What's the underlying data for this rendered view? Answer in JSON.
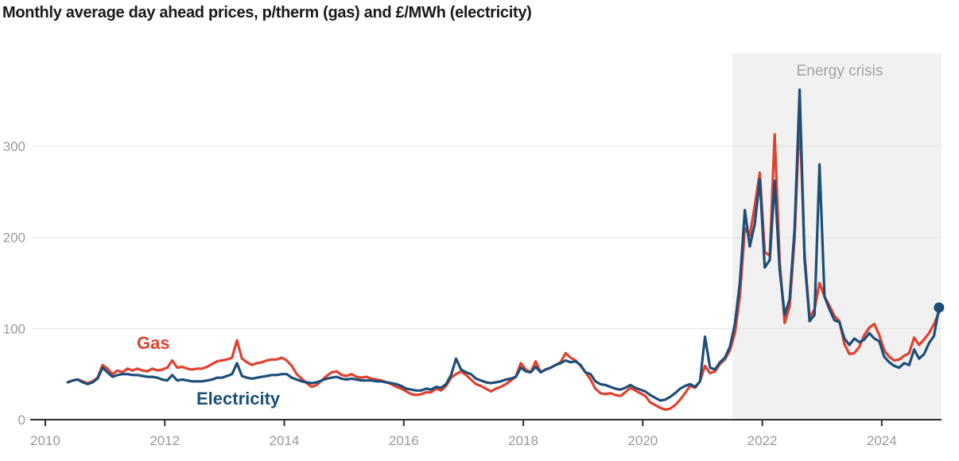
{
  "title": "Monthly average day ahead prices, p/therm (gas) and £/MWh (electricity)",
  "chart_data": {
    "type": "line",
    "title": "Monthly average day ahead prices, p/therm (gas) and £/MWh (electricity)",
    "x_frequency": "monthly",
    "x_start": "2010-05",
    "xlim": [
      2009.774,
      2025.0
    ],
    "ylim": [
      0,
      402
    ],
    "grid": "horizontal",
    "legend": "inline-labels",
    "x_ticks": [
      "2010",
      "2012",
      "2014",
      "2016",
      "2018",
      "2020",
      "2022",
      "2024"
    ],
    "y_ticks": [
      "0",
      "100",
      "200",
      "300"
    ],
    "series_labels": {
      "gas": "Gas",
      "electricity": "Electricity"
    },
    "annotation": {
      "label": "Energy crisis",
      "start_year": 2021.5,
      "end_year": 2025.0
    },
    "colors": {
      "gas": "#e0412f",
      "electricity": "#1c4e78",
      "grid": "#e4e4e4",
      "axis": "#2e2e2e",
      "tick_text": "#9a9a9a",
      "annotation_text": "#a3a3a3",
      "region_fill": "#f1f1f1",
      "title_text": "#1a1a1a"
    },
    "series": [
      {
        "name": "Gas",
        "unit": "p/therm",
        "color": "#e0412f",
        "end_marker": false,
        "values": [
          41,
          43,
          44,
          42,
          40,
          42,
          46,
          60,
          56,
          50,
          54,
          52,
          56,
          54,
          56,
          54,
          53,
          56,
          54,
          55,
          57,
          65,
          57,
          58,
          56,
          55,
          56,
          56,
          58,
          61,
          64,
          65,
          66,
          68,
          87,
          67,
          63,
          60,
          62,
          63,
          65,
          66,
          66,
          68,
          65,
          59,
          50,
          45,
          40,
          36,
          38,
          43,
          48,
          52,
          53,
          49,
          48,
          50,
          47,
          46,
          47,
          45,
          44,
          43,
          41,
          39,
          36,
          34,
          31,
          28,
          27,
          28,
          30,
          30,
          34,
          32,
          37,
          46,
          50,
          53,
          49,
          44,
          39,
          37,
          34,
          31,
          34,
          36,
          39,
          43,
          47,
          62,
          55,
          52,
          64,
          52,
          55,
          57,
          60,
          63,
          73,
          68,
          65,
          59,
          52,
          44,
          34,
          29,
          28,
          29,
          27,
          26,
          30,
          35,
          32,
          29,
          26,
          19,
          16,
          13,
          11,
          12,
          16,
          22,
          29,
          37,
          35,
          42,
          59,
          51,
          53,
          61,
          66,
          76,
          95,
          135,
          210,
          202,
          235,
          271,
          184,
          180,
          313,
          173,
          106,
          124,
          200,
          335,
          181,
          112,
          121,
          150,
          135,
          125,
          114,
          108,
          83,
          72,
          73,
          80,
          93,
          101,
          105,
          93,
          76,
          69,
          65,
          66,
          70,
          73,
          90,
          82,
          88,
          95,
          105,
          118
        ]
      },
      {
        "name": "Electricity",
        "unit": "£/MWh",
        "color": "#1c4e78",
        "end_marker": true,
        "values": [
          41,
          43,
          44,
          41,
          39,
          41,
          45,
          57,
          52,
          47,
          49,
          50,
          50,
          49,
          49,
          48,
          47,
          47,
          46,
          44,
          43,
          49,
          43,
          44,
          43,
          42,
          42,
          42,
          43,
          44,
          46,
          46,
          48,
          50,
          62,
          48,
          46,
          45,
          46,
          47,
          48,
          49,
          49,
          50,
          50,
          46,
          44,
          42,
          41,
          40,
          41,
          43,
          45,
          46,
          47,
          45,
          44,
          45,
          44,
          43,
          43,
          43,
          42,
          42,
          41,
          40,
          39,
          37,
          34,
          33,
          32,
          32,
          34,
          33,
          36,
          35,
          39,
          49,
          67,
          55,
          52,
          50,
          45,
          43,
          41,
          40,
          41,
          42,
          44,
          45,
          47,
          57,
          53,
          52,
          58,
          52,
          55,
          57,
          60,
          62,
          65,
          63,
          64,
          60,
          52,
          50,
          42,
          39,
          38,
          36,
          34,
          33,
          35,
          38,
          35,
          33,
          31,
          27,
          24,
          21,
          22,
          25,
          29,
          34,
          37,
          39,
          36,
          42,
          91,
          57,
          55,
          63,
          68,
          80,
          105,
          150,
          230,
          190,
          215,
          264,
          167,
          175,
          262,
          164,
          115,
          132,
          210,
          362,
          176,
          108,
          115,
          280,
          135,
          121,
          109,
          107,
          89,
          82,
          89,
          85,
          88,
          95,
          89,
          86,
          69,
          63,
          59,
          57,
          62,
          60,
          77,
          67,
          72,
          84,
          92,
          123
        ]
      }
    ]
  }
}
